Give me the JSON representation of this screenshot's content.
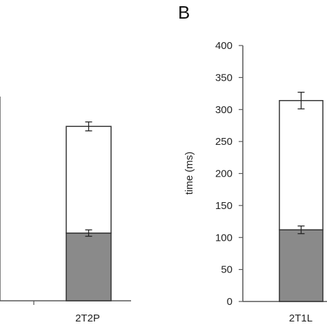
{
  "figure": {
    "panel_b_letter": "B",
    "colors": {
      "upper_segment": "#ffffff",
      "lower_segment": "#8a8a8a",
      "bar_outline": "#333333",
      "axis": "#555555",
      "text": "#222222"
    }
  },
  "chart_data": [
    {
      "type": "bar",
      "stacked": true,
      "panel": "",
      "categories": [
        "2T2P"
      ],
      "series": [
        {
          "values": [
            106
          ],
          "error": [
            5
          ]
        },
        {
          "values": [
            167
          ],
          "error": [
            7
          ]
        }
      ],
      "total": [
        273
      ],
      "xlabel": "",
      "ylabel": "",
      "ylim": [
        0,
        400
      ],
      "y_ticks_visible": false,
      "grid": false
    },
    {
      "type": "bar",
      "stacked": true,
      "panel": "B",
      "categories": [
        "2T1L"
      ],
      "series": [
        {
          "values": [
            112
          ],
          "error": [
            6
          ]
        },
        {
          "values": [
            202
          ],
          "error": [
            13
          ]
        }
      ],
      "total": [
        314
      ],
      "xlabel": "",
      "ylabel": "time (ms)",
      "ylim": [
        0,
        400
      ],
      "yticks": [
        0,
        50,
        100,
        150,
        200,
        250,
        300,
        350,
        400
      ],
      "grid": false
    }
  ]
}
